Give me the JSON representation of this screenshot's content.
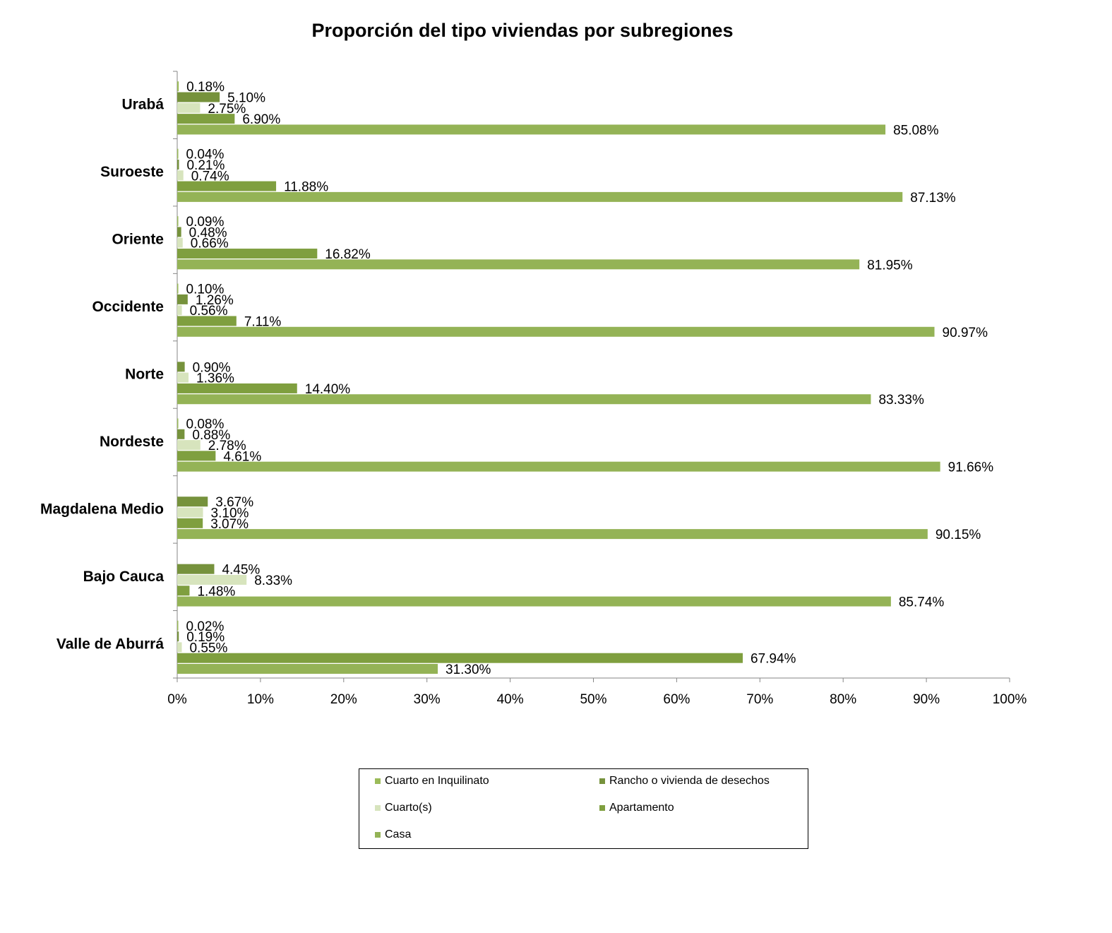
{
  "chart_data": {
    "type": "bar",
    "orientation": "horizontal",
    "title": "Proporción del tipo viviendas por subregiones",
    "xlabel": "",
    "ylabel": "",
    "xlim": [
      0,
      100
    ],
    "x_ticks": [
      "0%",
      "10%",
      "20%",
      "30%",
      "40%",
      "50%",
      "60%",
      "70%",
      "80%",
      "90%",
      "100%"
    ],
    "grid": false,
    "legend_position": "bottom",
    "categories": [
      "Urabá",
      "Suroeste",
      "Oriente",
      "Occidente",
      "Norte",
      "Nordeste",
      "Magdalena Medio",
      "Bajo Cauca",
      "Valle de Aburrá"
    ],
    "series": [
      {
        "name": "Cuarto en Inquilinato",
        "color": "#9bbb59",
        "values": [
          0.18,
          0.04,
          0.09,
          0.1,
          null,
          0.08,
          null,
          null,
          0.02
        ],
        "labels": [
          "0.18%",
          "0.04%",
          "0.09%",
          "0.10%",
          "",
          "0.08%",
          "",
          "",
          "0.02%"
        ]
      },
      {
        "name": "Rancho o vivienda de desechos",
        "color": "#76923c",
        "values": [
          5.1,
          0.21,
          0.48,
          1.26,
          0.9,
          0.88,
          3.67,
          4.45,
          0.19
        ],
        "labels": [
          "5.10%",
          "0.21%",
          "0.48%",
          "1.26%",
          "0.90%",
          "0.88%",
          "3.67%",
          "4.45%",
          "0.19%"
        ]
      },
      {
        "name": "Cuarto(s)",
        "color": "#d7e4bd",
        "values": [
          2.75,
          0.74,
          0.66,
          0.56,
          1.36,
          2.78,
          3.1,
          8.33,
          0.55
        ],
        "labels": [
          "2.75%",
          "0.74%",
          "0.66%",
          "0.56%",
          "1.36%",
          "2.78%",
          "3.10%",
          "8.33%",
          "0.55%"
        ]
      },
      {
        "name": "Apartamento",
        "color": "#7f9f3f",
        "values": [
          6.9,
          11.88,
          16.82,
          7.11,
          14.4,
          4.61,
          3.07,
          1.48,
          67.94
        ],
        "labels": [
          "6.90%",
          "11.88%",
          "16.82%",
          "7.11%",
          "14.40%",
          "4.61%",
          "3.07%",
          "1.48%",
          "67.94%"
        ]
      },
      {
        "name": "Casa",
        "color": "#94b356",
        "values": [
          85.08,
          87.13,
          81.95,
          90.97,
          83.33,
          91.66,
          90.15,
          85.74,
          31.3
        ],
        "labels": [
          "85.08%",
          "87.13%",
          "81.95%",
          "90.97%",
          "83.33%",
          "91.66%",
          "90.15%",
          "85.74%",
          "31.30%"
        ]
      }
    ]
  },
  "legend": {
    "items": [
      {
        "label": "Cuarto en Inquilinato",
        "color": "#9bbb59"
      },
      {
        "label": "Rancho o vivienda de desechos",
        "color": "#76923c"
      },
      {
        "label": "Cuarto(s)",
        "color": "#d7e4bd"
      },
      {
        "label": "Apartamento",
        "color": "#7f9f3f"
      },
      {
        "label": "Casa",
        "color": "#94b356"
      }
    ]
  }
}
